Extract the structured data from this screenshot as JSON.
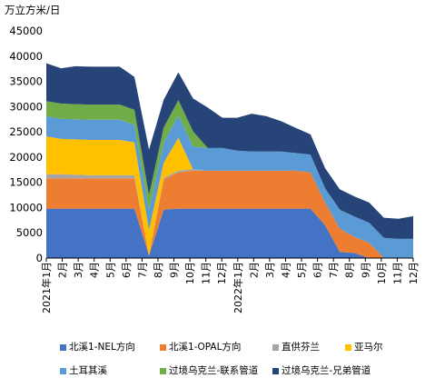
{
  "chart_data": {
    "type": "area",
    "stacked": true,
    "unit_label": "万立方米/日",
    "ylim": [
      0,
      45000
    ],
    "yticks": [
      0,
      5000,
      10000,
      15000,
      20000,
      25000,
      30000,
      35000,
      40000,
      45000
    ],
    "xlabels": [
      "2021年1月",
      "2月",
      "3月",
      "4月",
      "5月",
      "6月",
      "7月",
      "8月",
      "9月",
      "10月",
      "11月",
      "12月",
      "2022年1月",
      "2月",
      "3月",
      "4月",
      "5月",
      "6月",
      "7月",
      "8月",
      "9月",
      "10月",
      "11月",
      "12月"
    ],
    "x": [
      "2021-01",
      "2021-02",
      "2021-03",
      "2021-04",
      "2021-05",
      "2021-06",
      "2021-07",
      "2021-07b",
      "2021-08",
      "2021-09",
      "2021-10",
      "2021-11",
      "2021-12",
      "2022-01",
      "2022-02",
      "2022-03",
      "2022-04",
      "2022-05",
      "2022-06",
      "2022-06b",
      "2022-07",
      "2022-08",
      "2022-09",
      "2022-10",
      "2022-11",
      "2022-12"
    ],
    "series": [
      {
        "name": "北溪1-NEL方向",
        "color": "#4472c4",
        "values": [
          9800,
          9800,
          9800,
          9800,
          9800,
          9800,
          9800,
          500,
          9600,
          9800,
          9800,
          9800,
          9800,
          9800,
          9800,
          9800,
          9800,
          9800,
          9800,
          6500,
          1200,
          1000,
          0,
          0,
          0,
          0
        ]
      },
      {
        "name": "北溪1-OPAL方向",
        "color": "#ed7d31",
        "values": [
          6000,
          6000,
          6000,
          6000,
          6000,
          6000,
          6000,
          0,
          6000,
          7200,
          7500,
          7500,
          7500,
          7500,
          7500,
          7500,
          7500,
          7500,
          7200,
          4500,
          4600,
          3200,
          3000,
          0,
          0,
          0
        ]
      },
      {
        "name": "直供芬兰",
        "color": "#a5a5a5",
        "values": [
          800,
          800,
          700,
          600,
          600,
          600,
          600,
          0,
          300,
          300,
          300,
          0,
          0,
          0,
          0,
          0,
          0,
          0,
          0,
          0,
          0,
          0,
          0,
          0,
          0,
          0
        ]
      },
      {
        "name": "亚马尔",
        "color": "#ffc000",
        "values": [
          7500,
          7000,
          7000,
          7000,
          7000,
          7000,
          6500,
          5000,
          3000,
          6500,
          0,
          0,
          0,
          0,
          0,
          0,
          0,
          0,
          0,
          0,
          0,
          0,
          0,
          0,
          0,
          0
        ]
      },
      {
        "name": "土耳其溪",
        "color": "#5b9bd5",
        "values": [
          4000,
          4000,
          4000,
          4000,
          4000,
          4000,
          3500,
          4000,
          4000,
          4500,
          4500,
          4500,
          4500,
          4000,
          3800,
          3800,
          3800,
          3500,
          3500,
          2800,
          3800,
          4000,
          4000,
          4000,
          3800,
          3800
        ]
      },
      {
        "name": "过境乌克兰-联系管道",
        "color": "#70ad47",
        "values": [
          3000,
          3000,
          3000,
          3000,
          3000,
          3000,
          3000,
          3000,
          3000,
          3000,
          3000,
          0,
          0,
          0,
          0,
          0,
          0,
          0,
          0,
          0,
          0,
          0,
          0,
          0,
          0,
          0
        ]
      },
      {
        "name": "过境乌克兰-兄弟管道",
        "color": "#264478",
        "values": [
          7500,
          7000,
          7500,
          7500,
          7500,
          7500,
          6500,
          9000,
          5500,
          5500,
          6500,
          8000,
          6000,
          6500,
          7500,
          7000,
          6000,
          5000,
          4000,
          4000,
          4000,
          4000,
          4000,
          4000,
          4000,
          4500
        ]
      }
    ]
  }
}
